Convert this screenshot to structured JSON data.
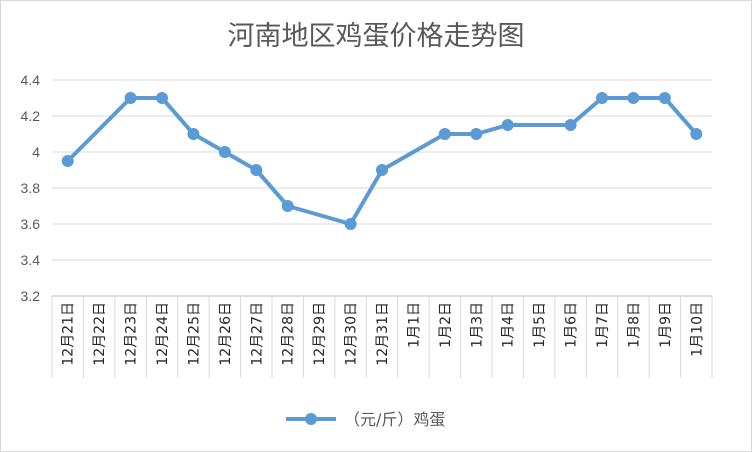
{
  "chart_data": {
    "type": "line",
    "title": "河南地区鸡蛋价格走势图",
    "xlabel": "",
    "ylabel": "",
    "ylim": [
      3.2,
      4.4
    ],
    "yticks": [
      "3.2",
      "3.4",
      "3.6",
      "3.8",
      "4",
      "4.2",
      "4.4"
    ],
    "grid": true,
    "legend": "bottom",
    "categories": [
      "12月21日",
      "12月22日",
      "12月23日",
      "12月24日",
      "12月25日",
      "12月26日",
      "12月27日",
      "12月28日",
      "12月29日",
      "12月30日",
      "12月31日",
      "1月1日",
      "1月2日",
      "1月3日",
      "1月4日",
      "1月5日",
      "1月6日",
      "1月7日",
      "1月8日",
      "1月9日",
      "1月10日"
    ],
    "series": [
      {
        "name": "（元/斤）鸡蛋",
        "color": "#5b9bd5",
        "values": [
          3.95,
          null,
          4.3,
          4.3,
          4.1,
          4.0,
          3.9,
          3.7,
          null,
          3.6,
          3.9,
          null,
          4.1,
          4.1,
          4.15,
          null,
          4.15,
          4.3,
          4.3,
          4.3,
          4.1
        ]
      }
    ]
  }
}
